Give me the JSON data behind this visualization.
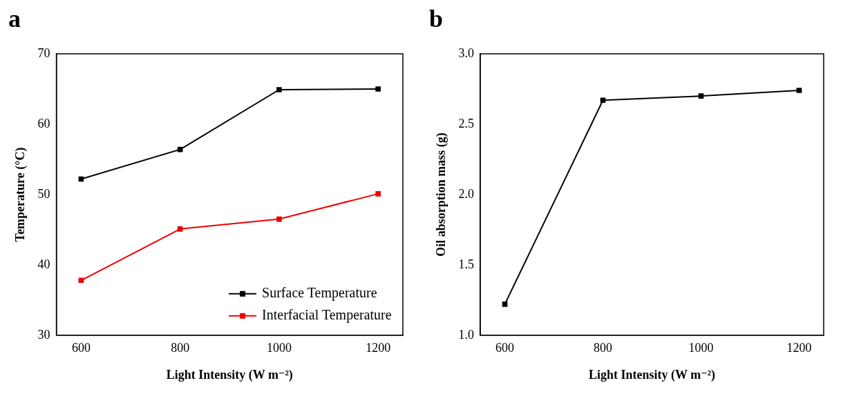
{
  "chart_data": [
    {
      "type": "line",
      "title": "a",
      "xlabel": "Light Intensity (W m⁻²)",
      "ylabel": "Temperature (°C)",
      "x": [
        600,
        800,
        1000,
        1200
      ],
      "series": [
        {
          "name": "Surface Temperature",
          "color": "#000000",
          "values": [
            52.2,
            56.4,
            64.9,
            65.0
          ]
        },
        {
          "name": "Interfacial Temperature",
          "color": "#ee0000",
          "values": [
            37.8,
            45.1,
            46.5,
            50.1
          ]
        }
      ],
      "xlim": [
        550,
        1250
      ],
      "xticks": [
        600,
        800,
        1000,
        1200
      ],
      "ylim": [
        30,
        70
      ],
      "yticks": [
        30,
        40,
        50,
        60,
        70
      ],
      "marker": "square",
      "line_style": "solid",
      "legend": "bottom right",
      "grid": false
    },
    {
      "type": "line",
      "title": "b",
      "xlabel": "Light Intensity (W m⁻²)",
      "ylabel": "Oil absorption mass (g)",
      "x": [
        600,
        800,
        1000,
        1200
      ],
      "series": [
        {
          "color": "#000000",
          "values": [
            1.22,
            2.67,
            2.7,
            2.74
          ]
        }
      ],
      "xlim": [
        550,
        1250
      ],
      "xticks": [
        600,
        800,
        1000,
        1200
      ],
      "ylim": [
        1.0,
        3.0
      ],
      "yticks": [
        {
          "value": 1.0,
          "label": "1.0"
        },
        {
          "value": 1.5,
          "label": "1.5"
        },
        {
          "value": 2.0,
          "label": "2.0"
        },
        {
          "value": 2.5,
          "label": "2.5"
        },
        {
          "value": 3.0,
          "label": "3.0"
        }
      ],
      "marker": "square",
      "line_style": "solid",
      "grid": false
    }
  ]
}
